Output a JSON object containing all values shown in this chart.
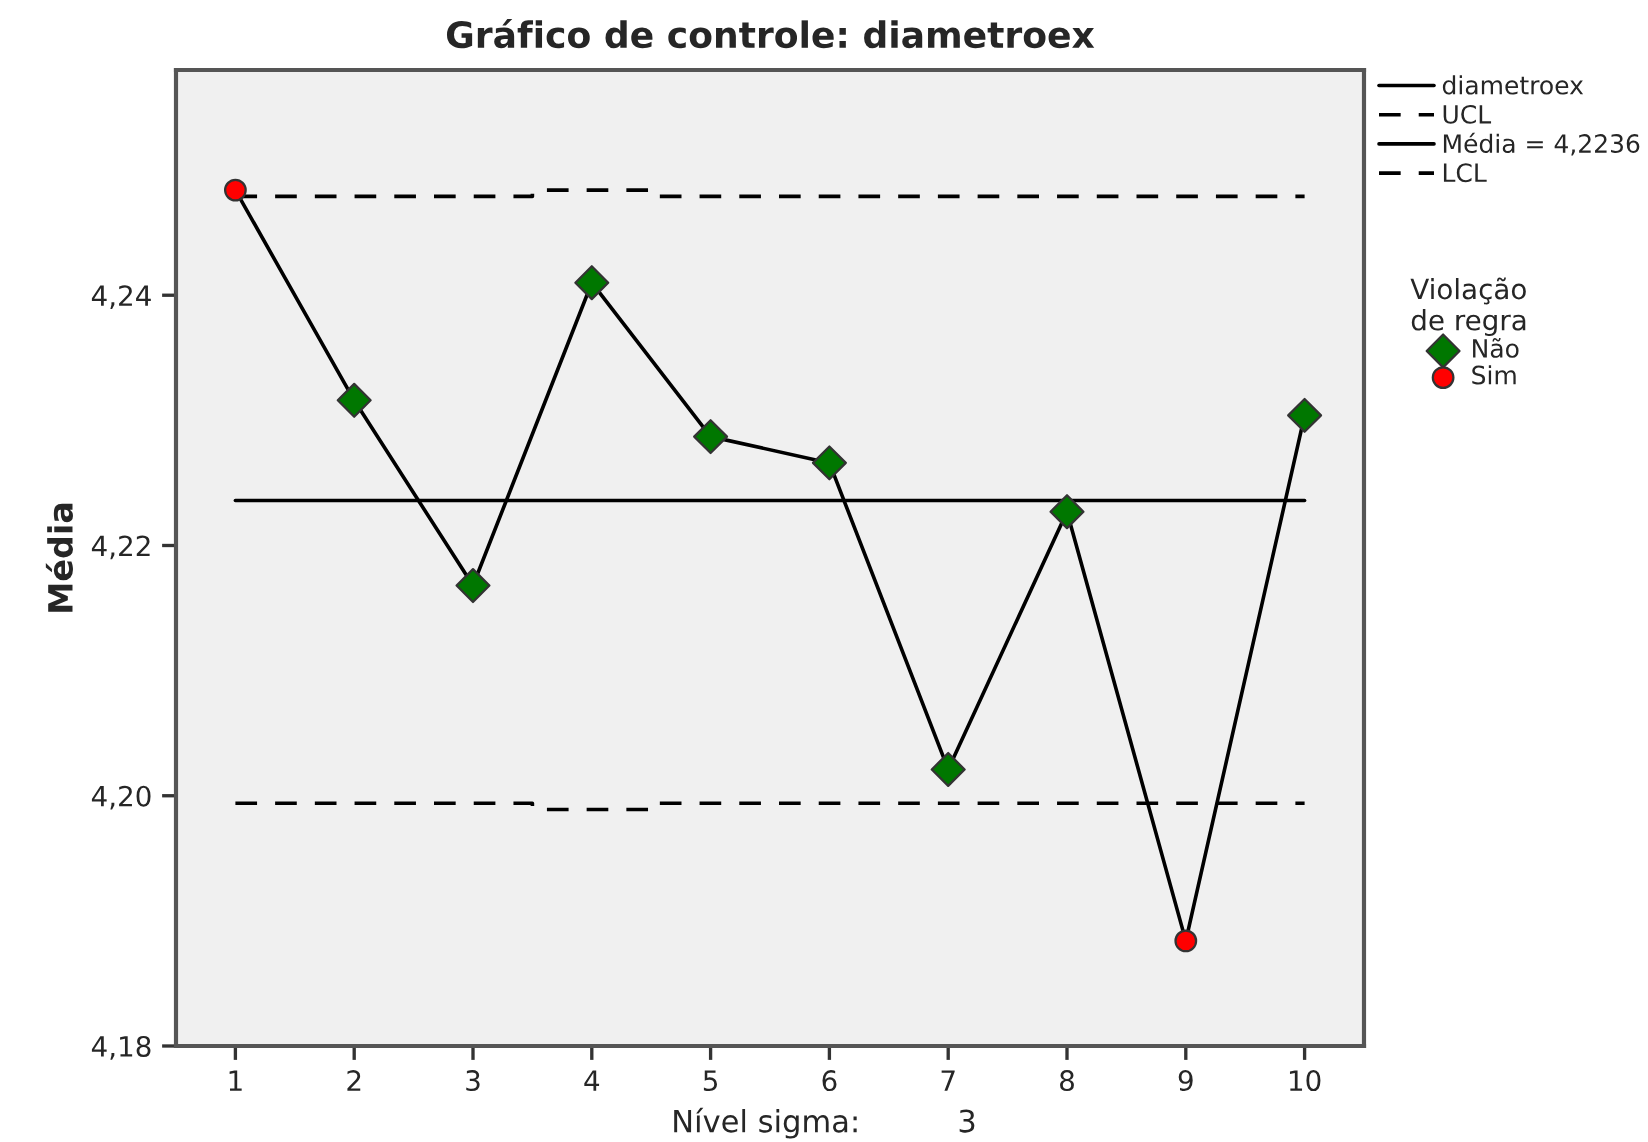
{
  "chart_data": {
    "type": "line",
    "title": "Gráfico de controle: diametroex",
    "ylabel": "Média",
    "categories": [
      "1",
      "2",
      "3",
      "4",
      "5",
      "6",
      "7",
      "8",
      "9",
      "10"
    ],
    "series": [
      {
        "name": "diametroex",
        "color": "#000000",
        "values": [
          4.2484,
          4.2316,
          4.2168,
          4.241,
          4.2287,
          4.2266,
          4.2021,
          4.2227,
          4.1884,
          4.2304
        ]
      },
      {
        "name": "UCL",
        "type": "step",
        "color": "#000000",
        "line_style": "dashed",
        "values": [
          4.2479,
          4.2479,
          4.2479,
          4.2484,
          4.2479,
          4.2479,
          4.2479,
          4.2479,
          4.2479,
          4.2479
        ]
      },
      {
        "name": "Média = 4,2236",
        "color": "#000000",
        "x": [
          "1",
          "10"
        ],
        "values": [
          4.2236,
          4.2236
        ]
      },
      {
        "name": "LCL",
        "type": "step",
        "color": "#000000",
        "line_style": "dashed",
        "values": [
          4.1994,
          4.1994,
          4.1994,
          4.1989,
          4.1994,
          4.1994,
          4.1994,
          4.1994,
          4.1994,
          4.1994
        ]
      },
      {
        "name": "Não",
        "type": "scatter",
        "color": "#007700",
        "marker": "diamond",
        "x": [
          "2",
          "3",
          "4",
          "5",
          "6",
          "7",
          "8",
          "10"
        ],
        "values": [
          4.2316,
          4.2168,
          4.241,
          4.2287,
          4.2266,
          4.2021,
          4.2227,
          4.2304
        ]
      },
      {
        "name": "Sim",
        "type": "scatter",
        "color": "#ff0000",
        "marker": "circle",
        "x": [
          "1",
          "9"
        ],
        "values": [
          4.2484,
          4.1884
        ]
      }
    ],
    "legend_title": "Violação\nde regra",
    "ylim": [
      4.18,
      4.258
    ],
    "yticks": [
      {
        "value": 4.18,
        "label": "4,18"
      },
      {
        "value": 4.2,
        "label": "4,20"
      },
      {
        "value": 4.22,
        "label": "4,22"
      },
      {
        "value": 4.24,
        "label": "4,24"
      }
    ],
    "legend": "top right",
    "grid": false,
    "annotations": [
      "Nível sigma:          3"
    ]
  }
}
